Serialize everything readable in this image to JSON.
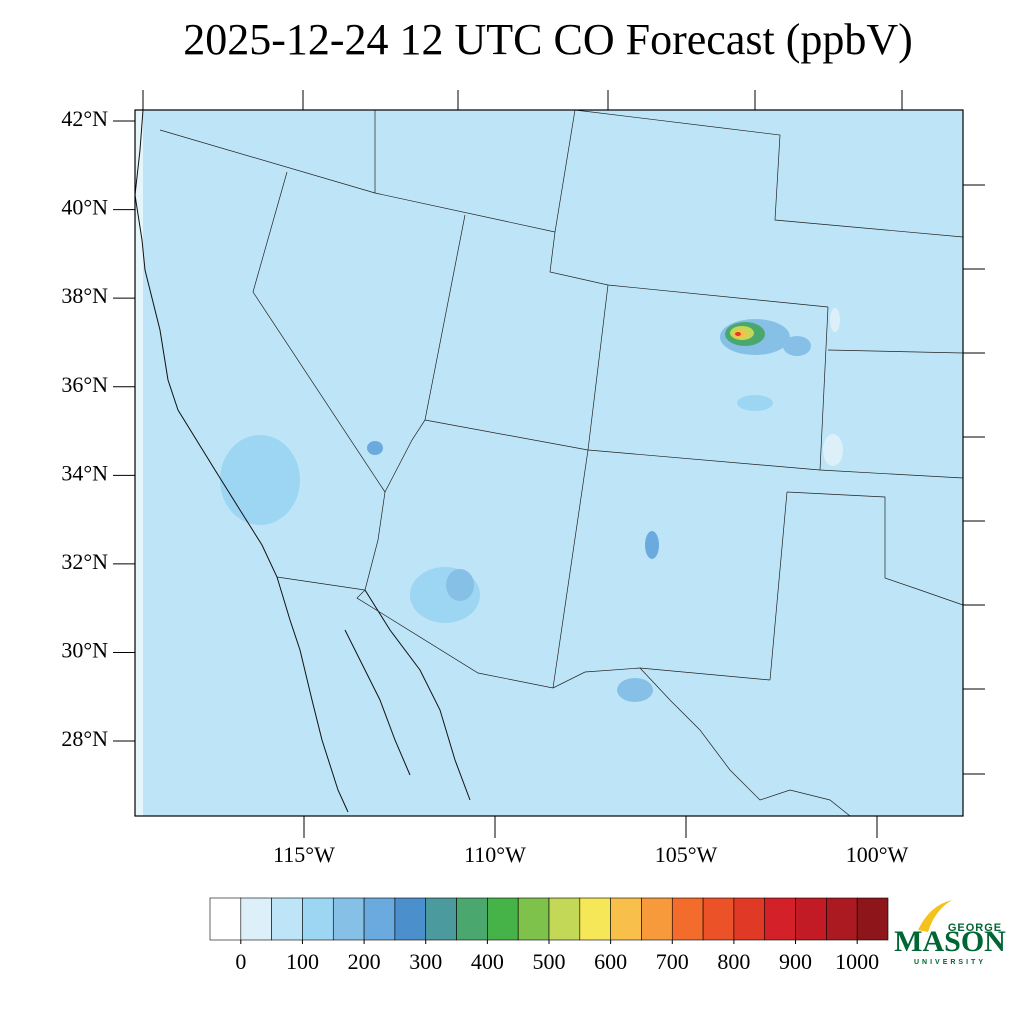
{
  "title": "2025-12-24 12 UTC CO Forecast (ppbV)",
  "map": {
    "lat_ticks": [
      {
        "value": 42,
        "label": "42°N"
      },
      {
        "value": 40,
        "label": "40°N"
      },
      {
        "value": 38,
        "label": "38°N"
      },
      {
        "value": 36,
        "label": "36°N"
      },
      {
        "value": 34,
        "label": "34°N"
      },
      {
        "value": 32,
        "label": "32°N"
      },
      {
        "value": 30,
        "label": "30°N"
      },
      {
        "value": 28,
        "label": "28°N"
      }
    ],
    "lon_ticks": [
      {
        "value": -115,
        "label": "115°W"
      },
      {
        "value": -110,
        "label": "110°W"
      },
      {
        "value": -105,
        "label": "105°W"
      },
      {
        "value": -100,
        "label": "100°W"
      }
    ]
  },
  "colorbar": {
    "ticks": [
      0,
      100,
      200,
      300,
      400,
      500,
      600,
      700,
      800,
      900,
      1000
    ],
    "colors": [
      "#ffffff",
      "#ddf0fa",
      "#bde5f7",
      "#9dd6f2",
      "#87c0e6",
      "#6aaade",
      "#4b8fcc",
      "#4a9a9e",
      "#4aa86e",
      "#45b348",
      "#7ec24c",
      "#c3d856",
      "#f6e759",
      "#f8c04a",
      "#f79a3c",
      "#f36c2b",
      "#ec5228",
      "#e03a26",
      "#d42129",
      "#c21b25",
      "#ab1a21",
      "#8e161b"
    ]
  },
  "logo": {
    "top": "GEORGE",
    "main": "MASON",
    "bottom": "UNIVERSITY"
  }
}
